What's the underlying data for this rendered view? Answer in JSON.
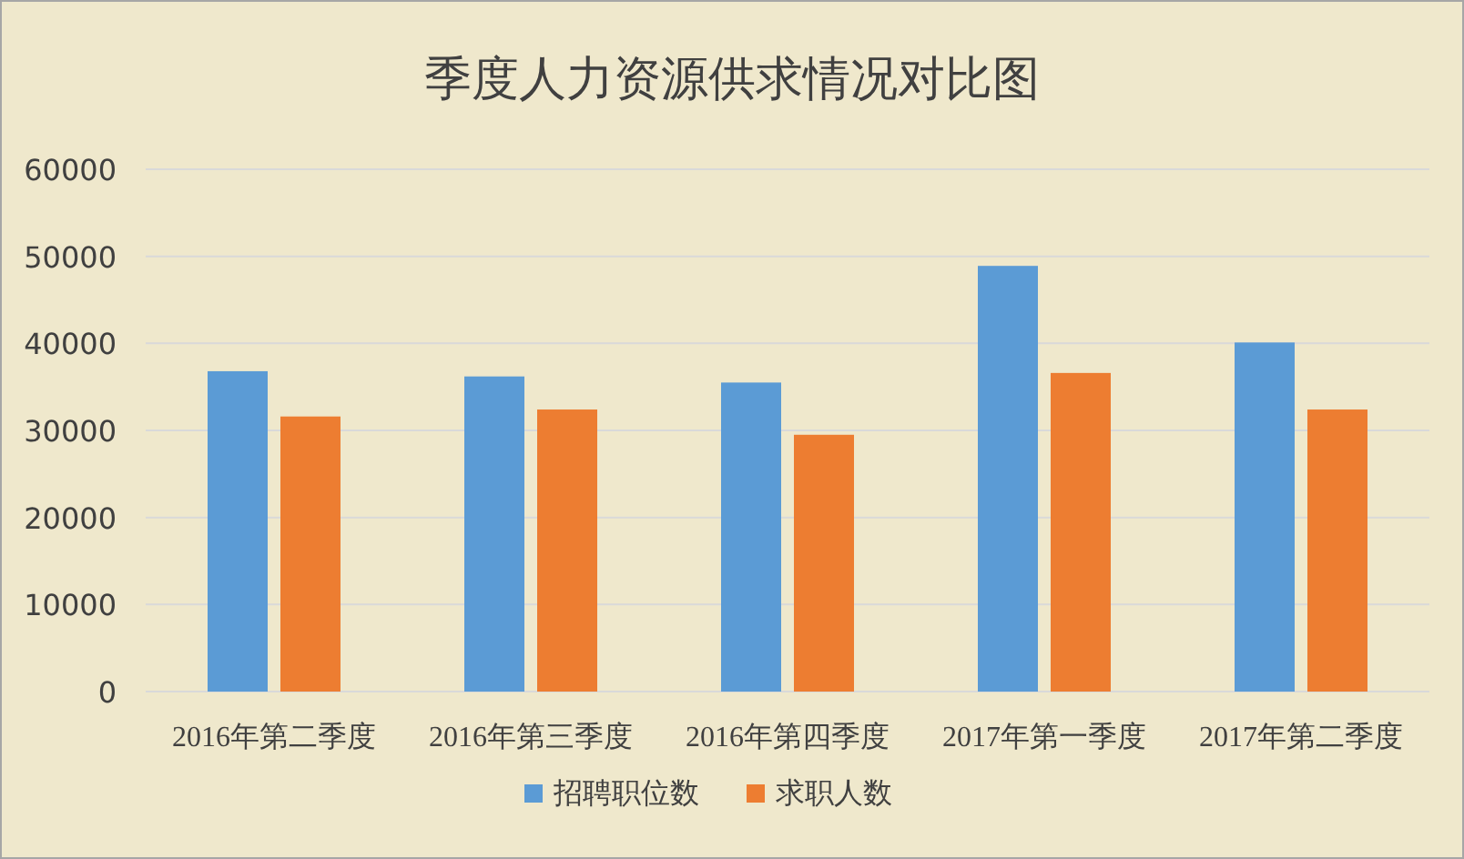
{
  "chart_data": {
    "type": "bar",
    "title": "季度人力资源供求情况对比图",
    "categories": [
      "2016年第二季度",
      "2016年第三季度",
      "2016年第四季度",
      "2017年第一季度",
      "2017年第二季度"
    ],
    "series": [
      {
        "name": "招聘职位数",
        "color": "#5b9bd5",
        "values": [
          36800,
          36200,
          35500,
          48900,
          40100
        ]
      },
      {
        "name": "求职人数",
        "color": "#ed7d31",
        "values": [
          31600,
          32400,
          29500,
          36600,
          32400
        ]
      }
    ],
    "ylim": [
      0,
      60000
    ],
    "yticks": [
      0,
      10000,
      20000,
      30000,
      40000,
      50000,
      60000
    ],
    "grid": "y",
    "legend": "bottom"
  }
}
